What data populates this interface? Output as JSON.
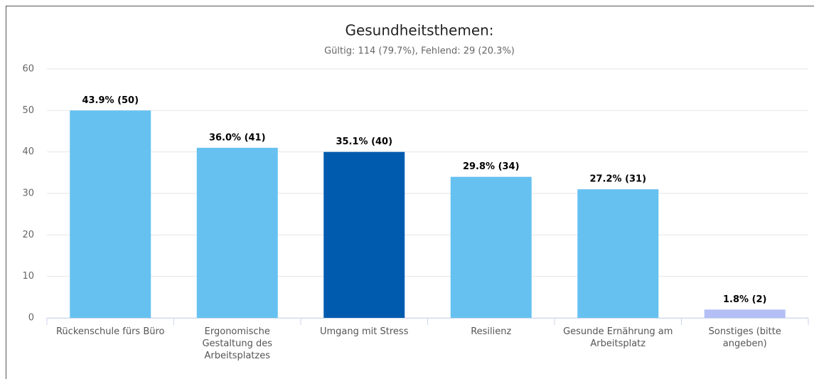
{
  "chart_data": {
    "type": "bar",
    "title": "Gesundheitsthemen:",
    "subtitle": "Gültig: 114 (79.7%), Fehlend: 29 (20.3%)",
    "categories": [
      "Rückenschule fürs Büro",
      "Ergonomische Gestaltung des Arbeitsplatzes",
      "Umgang mit Stress",
      "Resilienz",
      "Gesunde Ernährung am Arbeitsplatz",
      "Sonstiges (bitte angeben)"
    ],
    "values": [
      50,
      41,
      40,
      34,
      31,
      2
    ],
    "value_labels": [
      "43.9% (50)",
      "36.0% (41)",
      "35.1% (40)",
      "29.8% (34)",
      "27.2% (31)",
      "1.8% (2)"
    ],
    "colors": [
      "#66c1f0",
      "#66c1f0",
      "#005baf",
      "#66c1f0",
      "#66c1f0",
      "#b3bff5"
    ],
    "ylim": [
      0,
      60
    ],
    "yticks": [
      0,
      10,
      20,
      30,
      40,
      50,
      60
    ],
    "grid": true
  }
}
